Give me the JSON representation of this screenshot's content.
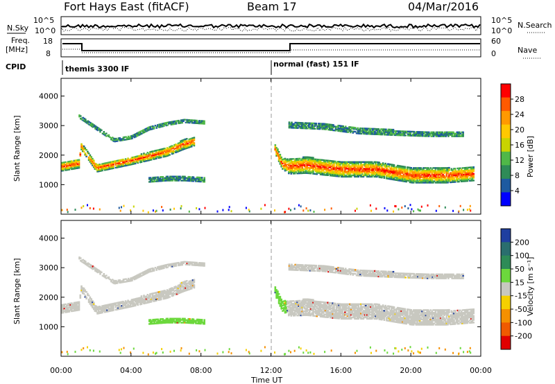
{
  "header": {
    "radar": "Fort Hays East (fitACF)",
    "beam": "Beam 17",
    "date": "04/Mar/2016"
  },
  "top_panels": {
    "nsky_label": "N.Sky",
    "nsearch_label": "N.Search",
    "freq_label_1": "Freq.",
    "freq_label_2": "[MHz]",
    "nave_label": "Nave",
    "cpid_label": "CPID",
    "noise_ticks_left": [
      "10^5",
      "10^0"
    ],
    "noise_ticks_right": [
      "10^5",
      "10^0"
    ],
    "freq_ticks": [
      "18",
      "8"
    ],
    "nave_ticks": [
      "60",
      "0"
    ],
    "cpid_modes": [
      "themis 3300 IF",
      "normal (fast) 151 IF"
    ]
  },
  "colorbars": {
    "power_label": "Power [dB]",
    "power_ticks": [
      "28",
      "24",
      "20",
      "16",
      "12",
      "8",
      "4"
    ],
    "power_colors": [
      "#ff0000",
      "#ff5a00",
      "#ff9900",
      "#ffc800",
      "#c8d400",
      "#50b848",
      "#2e8b57",
      "#1e5aa0",
      "#0000ff"
    ],
    "velocity_label": "Velocity [m s⁻¹]",
    "velocity_ticks": [
      "200",
      "100",
      "50",
      "15",
      "-15",
      "-50",
      "-100",
      "-200"
    ],
    "velocity_colors": [
      "#1f3fa0",
      "#2a6e6e",
      "#2e8b57",
      "#6cd83c",
      "#c8c8c0",
      "#f5d000",
      "#f59000",
      "#f05a00",
      "#e00000"
    ]
  },
  "chart_data": [
    {
      "type": "heatmap",
      "title": "Power",
      "ylabel": "Slant Range [km]",
      "xlabel": "Time UT",
      "x_ticks": [
        "00:00",
        "04:00",
        "08:00",
        "12:00",
        "16:00",
        "20:00",
        "00:00"
      ],
      "y_ticks": [
        "1000",
        "2000",
        "3000",
        "4000"
      ],
      "ylim": [
        0,
        4600
      ],
      "xlim_hours": [
        0,
        24
      ],
      "mode_change_hour": 12,
      "echo_bands": [
        {
          "name": "main",
          "t": [
            0,
            1,
            1.1,
            2,
            4,
            6,
            7,
            7.8,
            7.6
          ],
          "r": [
            1600,
            1700,
            2300,
            1550,
            1800,
            2100,
            2350,
            2500,
            2600
          ],
          "width": [
            300,
            300,
            220,
            260,
            260,
            300,
            320,
            300,
            250
          ]
        },
        {
          "name": "mid",
          "t": [
            5,
            6,
            7,
            8.2
          ],
          "r": [
            1150,
            1200,
            1200,
            1150
          ],
          "width": [
            150,
            160,
            160,
            150
          ]
        },
        {
          "name": "upper",
          "t": [
            1,
            2,
            3,
            4,
            5,
            6,
            7,
            8.2
          ],
          "r": [
            3300,
            2900,
            2500,
            2600,
            2900,
            3050,
            3150,
            3100
          ],
          "width": [
            120,
            120,
            120,
            120,
            120,
            120,
            120,
            120
          ]
        },
        {
          "name": "evening",
          "t": [
            12.2,
            12.6,
            13,
            14,
            16,
            18,
            20,
            22,
            23.6
          ],
          "r": [
            2200,
            1700,
            1600,
            1650,
            1500,
            1500,
            1300,
            1300,
            1350
          ],
          "width": [
            300,
            350,
            500,
            550,
            500,
            500,
            500,
            500,
            450
          ]
        },
        {
          "name": "evening_upper",
          "t": [
            13,
            15,
            17,
            19,
            21,
            23
          ],
          "r": [
            3000,
            2950,
            2800,
            2750,
            2700,
            2700
          ],
          "width": [
            180,
            180,
            180,
            180,
            160,
            160
          ]
        }
      ]
    },
    {
      "type": "heatmap",
      "title": "Velocity",
      "ylabel": "Slant Range [km]",
      "xlabel": "Time UT",
      "x_ticks": [
        "00:00",
        "04:00",
        "08:00",
        "12:00",
        "16:00",
        "20:00",
        "00:00"
      ],
      "y_ticks": [
        "1000",
        "2000",
        "3000",
        "4000"
      ],
      "ylim": [
        0,
        4600
      ],
      "xlim_hours": [
        0,
        24
      ]
    }
  ]
}
